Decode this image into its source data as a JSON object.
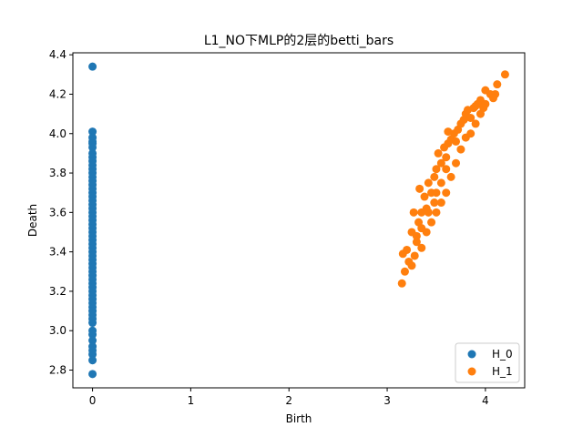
{
  "chart_data": {
    "type": "scatter",
    "title": "L1_NO下MLP的2层的betti_bars",
    "xlabel": "Birth",
    "ylabel": "Death",
    "xlim": [
      -0.2,
      4.4
    ],
    "ylim": [
      2.71,
      4.41
    ],
    "xticks": [
      0,
      1,
      2,
      3,
      4
    ],
    "yticks": [
      2.8,
      3.0,
      3.2,
      3.4,
      3.6,
      3.8,
      4.0,
      4.2,
      4.4
    ],
    "legend_position": "lower-right",
    "grid": false,
    "series": [
      {
        "name": "H_0",
        "color": "#1f77b4",
        "points": [
          [
            0,
            4.34
          ],
          [
            0,
            4.01
          ],
          [
            0,
            3.98
          ],
          [
            0,
            3.96
          ],
          [
            0,
            3.95
          ],
          [
            0,
            3.93
          ],
          [
            0,
            3.9
          ],
          [
            0,
            3.88
          ],
          [
            0,
            3.86
          ],
          [
            0,
            3.84
          ],
          [
            0,
            3.82
          ],
          [
            0,
            3.8
          ],
          [
            0,
            3.78
          ],
          [
            0,
            3.76
          ],
          [
            0,
            3.74
          ],
          [
            0,
            3.72
          ],
          [
            0,
            3.7
          ],
          [
            0,
            3.68
          ],
          [
            0,
            3.66
          ],
          [
            0,
            3.64
          ],
          [
            0,
            3.62
          ],
          [
            0,
            3.6
          ],
          [
            0,
            3.58
          ],
          [
            0,
            3.56
          ],
          [
            0,
            3.54
          ],
          [
            0,
            3.52
          ],
          [
            0,
            3.5
          ],
          [
            0,
            3.48
          ],
          [
            0,
            3.46
          ],
          [
            0,
            3.44
          ],
          [
            0,
            3.42
          ],
          [
            0,
            3.4
          ],
          [
            0,
            3.38
          ],
          [
            0,
            3.36
          ],
          [
            0,
            3.34
          ],
          [
            0,
            3.32
          ],
          [
            0,
            3.3
          ],
          [
            0,
            3.28
          ],
          [
            0,
            3.26
          ],
          [
            0,
            3.24
          ],
          [
            0,
            3.22
          ],
          [
            0,
            3.2
          ],
          [
            0,
            3.18
          ],
          [
            0,
            3.16
          ],
          [
            0,
            3.14
          ],
          [
            0,
            3.12
          ],
          [
            0,
            3.1
          ],
          [
            0,
            3.08
          ],
          [
            0,
            3.06
          ],
          [
            0,
            3.04
          ],
          [
            0,
            3.0
          ],
          [
            0,
            2.98
          ],
          [
            0,
            2.95
          ],
          [
            0,
            2.92
          ],
          [
            0,
            2.9
          ],
          [
            0,
            2.88
          ],
          [
            0,
            2.85
          ],
          [
            0,
            2.78
          ]
        ]
      },
      {
        "name": "H_1",
        "color": "#ff7f0e",
        "points": [
          [
            3.15,
            3.24
          ],
          [
            3.16,
            3.39
          ],
          [
            3.2,
            3.41
          ],
          [
            3.18,
            3.3
          ],
          [
            3.22,
            3.35
          ],
          [
            3.25,
            3.33
          ],
          [
            3.28,
            3.38
          ],
          [
            3.3,
            3.45
          ],
          [
            3.25,
            3.5
          ],
          [
            3.27,
            3.6
          ],
          [
            3.32,
            3.55
          ],
          [
            3.35,
            3.6
          ],
          [
            3.33,
            3.72
          ],
          [
            3.38,
            3.68
          ],
          [
            3.4,
            3.62
          ],
          [
            3.42,
            3.75
          ],
          [
            3.45,
            3.7
          ],
          [
            3.48,
            3.78
          ],
          [
            3.5,
            3.82
          ],
          [
            3.52,
            3.9
          ],
          [
            3.55,
            3.85
          ],
          [
            3.58,
            3.93
          ],
          [
            3.6,
            3.88
          ],
          [
            3.62,
            3.95
          ],
          [
            3.65,
            3.97
          ],
          [
            3.68,
            4.0
          ],
          [
            3.7,
            3.96
          ],
          [
            3.72,
            4.02
          ],
          [
            3.75,
            4.05
          ],
          [
            3.78,
            4.07
          ],
          [
            3.8,
            4.1
          ],
          [
            3.82,
            4.12
          ],
          [
            3.85,
            4.08
          ],
          [
            3.88,
            4.13
          ],
          [
            3.9,
            4.14
          ],
          [
            3.95,
            4.17
          ],
          [
            4.0,
            4.15
          ],
          [
            4.05,
            4.2
          ],
          [
            4.12,
            4.25
          ],
          [
            4.1,
            4.2
          ],
          [
            4.2,
            4.3
          ],
          [
            3.35,
            3.42
          ],
          [
            3.4,
            3.5
          ],
          [
            3.45,
            3.55
          ],
          [
            3.5,
            3.6
          ],
          [
            3.55,
            3.65
          ],
          [
            3.6,
            3.7
          ],
          [
            3.65,
            3.78
          ],
          [
            3.7,
            3.85
          ],
          [
            3.75,
            3.92
          ],
          [
            3.8,
            3.98
          ],
          [
            3.85,
            4.0
          ],
          [
            3.9,
            4.05
          ],
          [
            3.95,
            4.1
          ],
          [
            3.62,
            4.01
          ],
          [
            3.92,
            4.15
          ],
          [
            3.98,
            4.13
          ],
          [
            4.08,
            4.18
          ],
          [
            4.0,
            4.22
          ],
          [
            3.3,
            3.48
          ],
          [
            3.35,
            3.52
          ],
          [
            3.5,
            3.7
          ],
          [
            3.55,
            3.75
          ],
          [
            3.6,
            3.82
          ],
          [
            3.42,
            3.6
          ],
          [
            3.48,
            3.65
          ]
        ]
      }
    ]
  }
}
